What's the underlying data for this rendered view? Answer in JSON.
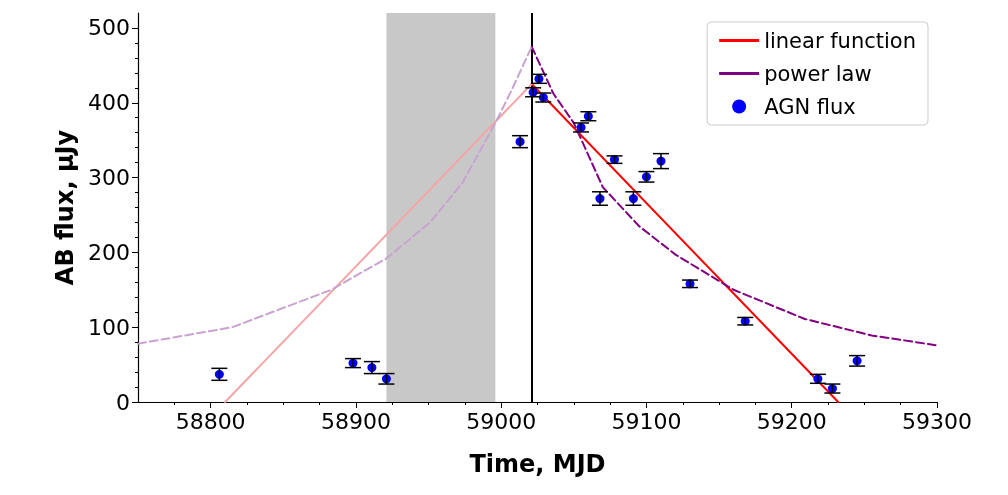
{
  "chart_data": {
    "type": "scatter",
    "xlabel": "Time, MJD",
    "ylabel": "AB flux, μJy",
    "xlim": [
      58750,
      59300
    ],
    "xticks": [
      58800,
      58900,
      59000,
      59100,
      59200,
      59300
    ],
    "ylim": [
      0,
      520
    ],
    "yticks": [
      0,
      100,
      200,
      300,
      400,
      500
    ],
    "grid": false,
    "legend": "top right",
    "ref_lines": [
      {
        "axis": "x",
        "value": 59021,
        "color": "#000000",
        "line_style": "solid"
      }
    ],
    "bands": [
      {
        "axis": "x",
        "from": 58921,
        "to": 58996,
        "color": "#c8c8c8"
      }
    ],
    "series": [
      {
        "type": "line",
        "name": "linear function",
        "color": "#ff0000",
        "line_style": "solid",
        "marker": "none",
        "x": [
          59021,
          59232
        ],
        "values": [
          425,
          0
        ]
      },
      {
        "type": "line",
        "color": "#f4a6a6",
        "line_style": "solid",
        "marker": "none",
        "x": [
          58810,
          59021
        ],
        "values": [
          0,
          425
        ]
      },
      {
        "type": "line",
        "name": "power law",
        "color": "#800080",
        "line_style": "dashed",
        "marker": "none",
        "x": [
          59021,
          59036,
          59050,
          59070,
          59095,
          59120,
          59160,
          59209,
          59255,
          59299
        ],
        "values": [
          475,
          412,
          373,
          287,
          235,
          197,
          150,
          111,
          89,
          76
        ]
      },
      {
        "type": "line",
        "color": "#c9a3cf",
        "line_style": "dashed",
        "marker": "none",
        "x": [
          58750,
          58815,
          58883,
          58921,
          58951,
          58973,
          58996,
          59007,
          59021
        ],
        "values": [
          78,
          100,
          150,
          192,
          240,
          292,
          373,
          416,
          475
        ]
      },
      {
        "name": "AGN flux",
        "color": "#0000ff",
        "marker": "circle",
        "x": [
          58806,
          58898,
          58911,
          58921,
          59013,
          59022,
          59026,
          59029,
          59055,
          59060,
          59068,
          59078,
          59091,
          59100,
          59110,
          59130,
          59168,
          59218,
          59228,
          59245
        ],
        "values": [
          37,
          52,
          46,
          31,
          348,
          414,
          432,
          407,
          367,
          382,
          272,
          324,
          272,
          301,
          322,
          158,
          108,
          31,
          18,
          55
        ],
        "errors": [
          8,
          6,
          8,
          7,
          8,
          6,
          6,
          6,
          6,
          6,
          9,
          5,
          9,
          7,
          10,
          5,
          5,
          6,
          6,
          7
        ]
      }
    ]
  }
}
